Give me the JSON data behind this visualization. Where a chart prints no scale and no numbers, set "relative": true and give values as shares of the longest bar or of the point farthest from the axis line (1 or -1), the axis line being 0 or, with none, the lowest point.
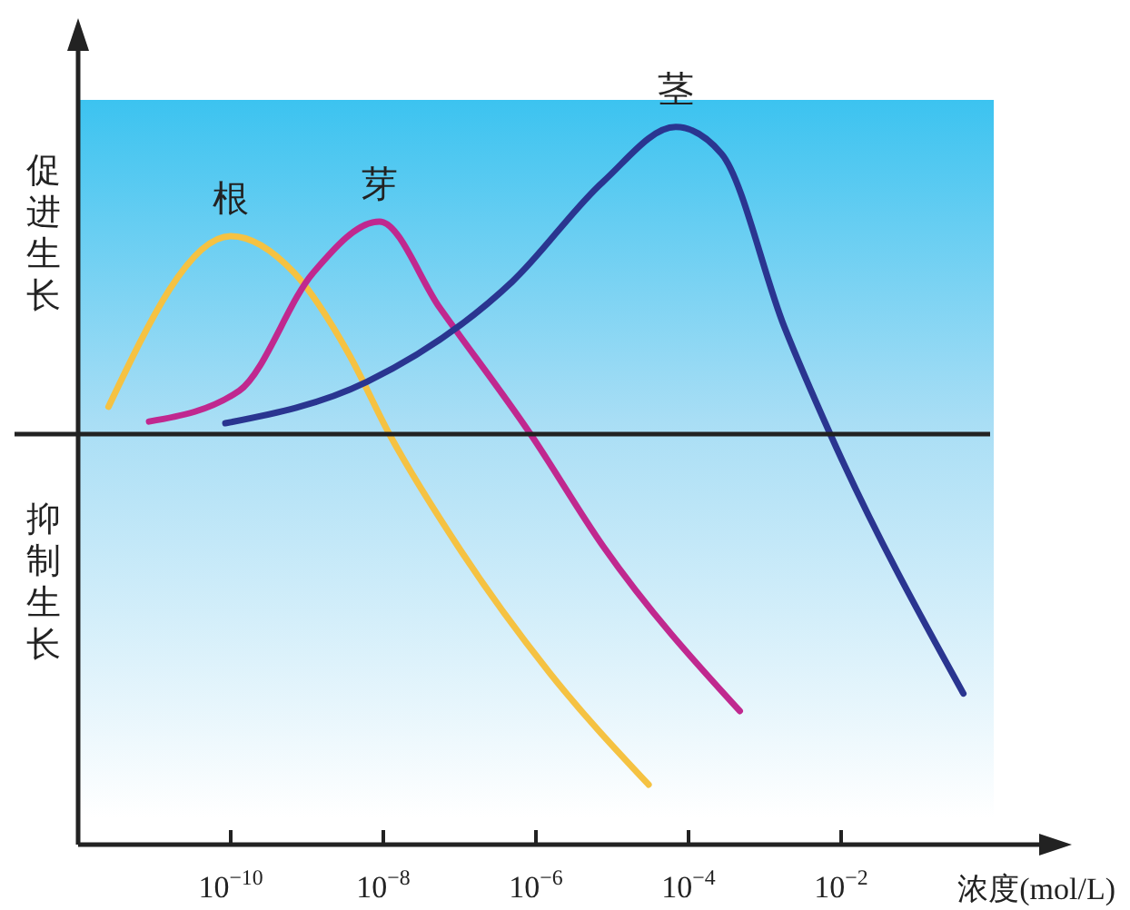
{
  "chart_data": {
    "type": "line",
    "relative": true,
    "log": "x",
    "xlabel": "浓度(mol/L)",
    "xlim": [
      1e-12,
      1
    ],
    "xticks": [
      {
        "value": 1e-10,
        "label": "10$^{−10}$"
      },
      {
        "value": 1e-08,
        "label": "10$^{−8}$"
      },
      {
        "value": 1e-06,
        "label": "10$^{−6}$"
      },
      {
        "value": 0.0001,
        "label": "10$^{−4}$"
      },
      {
        "value": 0.01,
        "label": "10$^{−2}$"
      }
    ],
    "annotations": [
      "促进生长",
      "抑制生长"
    ],
    "marker": "none",
    "line_style": "solid",
    "series": [
      {
        "name": "根",
        "color": "#f5c242",
        "x": [
          2.5e-12,
          1e-10,
          6.8e-10,
          3.5e-09,
          1.2e-08,
          9.5e-08,
          1.5e-06,
          3e-05
        ],
        "values": [
          0.078,
          0.565,
          0.46,
          0.23,
          0,
          -0.32,
          -0.68,
          -1
        ]
      },
      {
        "name": "芽",
        "color": "#c0288f",
        "x": [
          8.5e-12,
          1.3e-10,
          1.2e-09,
          8.9e-09,
          5.5e-08,
          8.5e-07,
          7.6e-06,
          0.00047
        ],
        "values": [
          0.036,
          0.124,
          0.46,
          0.606,
          0.36,
          0,
          -0.32,
          -0.79
        ]
      },
      {
        "name": "茎",
        "color": "#2a3590",
        "x": [
          8.5e-11,
          6.2e-09,
          4.9e-07,
          7.6e-06,
          6.8e-05,
          0.00027,
          0.0018,
          0.0072,
          0.4
        ],
        "values": [
          0.031,
          0.15,
          0.435,
          0.72,
          0.876,
          0.8,
          0.306,
          0,
          -0.74
        ]
      }
    ]
  }
}
